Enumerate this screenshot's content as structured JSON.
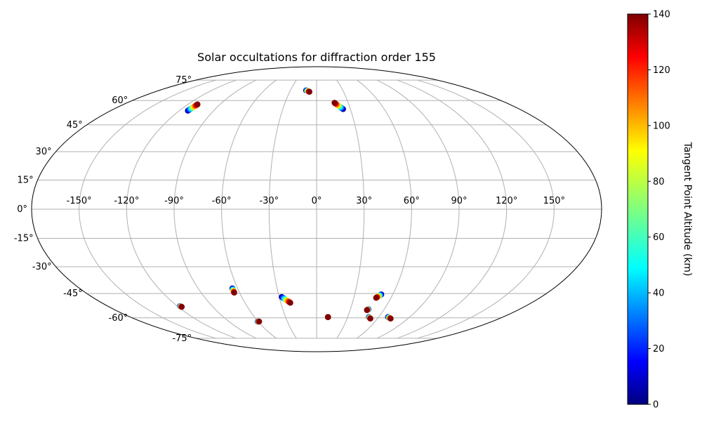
{
  "chart_data": {
    "type": "scatter",
    "projection": "mollweide",
    "title": "Solar occultations for diffraction order 155",
    "grid": true,
    "x_ticks": [
      "-150°",
      "-120°",
      "-90°",
      "-60°",
      "-30°",
      "0°",
      "30°",
      "60°",
      "90°",
      "120°",
      "150°"
    ],
    "y_ticks": [
      "75°",
      "60°",
      "45°",
      "30°",
      "15°",
      "0°",
      "-15°",
      "-30°",
      "-45°",
      "-60°",
      "-75°"
    ],
    "colorbar": {
      "label": "Tangent Point Altitude (km)",
      "colormap": "jet",
      "range": [
        0,
        140
      ],
      "ticks": [
        "0",
        "20",
        "40",
        "60",
        "80",
        "100",
        "120",
        "140"
      ]
    },
    "tracks": [
      {
        "lon_range": [
          -112.5,
          -111.0
        ],
        "lat_range": [
          53.5,
          57.5
        ],
        "alt_range": [
          0,
          140
        ]
      },
      {
        "lon_range": [
          -12.0,
          -8.0
        ],
        "lat_range": [
          67.0,
          66.0
        ],
        "alt_range": [
          0,
          140
        ]
      },
      {
        "lon_range": [
          23.5,
          17.0
        ],
        "lat_range": [
          54.5,
          58.5
        ],
        "alt_range": [
          0,
          140
        ]
      },
      {
        "lon_range": [
          -117.5,
          -117.0
        ],
        "lat_range": [
          -52.5,
          -53.0
        ],
        "alt_range": [
          0,
          140
        ]
      },
      {
        "lon_range": [
          -64.0,
          -64.2
        ],
        "lat_range": [
          -42.0,
          -44.5
        ],
        "alt_range": [
          0,
          140
        ]
      },
      {
        "lon_range": [
          -60.5,
          -59.0
        ],
        "lat_range": [
          -62.5,
          -62.5
        ],
        "alt_range": [
          0,
          140
        ]
      },
      {
        "lon_range": [
          -28.0,
          -22.0
        ],
        "lat_range": [
          -47.0,
          -50.5
        ],
        "alt_range": [
          0,
          140
        ]
      },
      {
        "lon_range": [
          51.0,
          48.0
        ],
        "lat_range": [
          -45.5,
          -47.5
        ],
        "alt_range": [
          0,
          140
        ]
      },
      {
        "lon_range": [
          46.0,
          45.0
        ],
        "lat_range": [
          -54.5,
          -55.0
        ],
        "alt_range": [
          0,
          140
        ]
      },
      {
        "lon_range": [
          50.5,
          53.0
        ],
        "lat_range": [
          -59.5,
          -60.5
        ],
        "alt_range": [
          0,
          140
        ]
      },
      {
        "lon_range": [
          69.0,
          73.0
        ],
        "lat_range": [
          -59.5,
          -60.5
        ],
        "alt_range": [
          0,
          140
        ]
      },
      {
        "lon_range": [
          11.0,
          11.0
        ],
        "lat_range": [
          -59.5,
          -59.5
        ],
        "alt_range": [
          140,
          140
        ]
      }
    ]
  }
}
